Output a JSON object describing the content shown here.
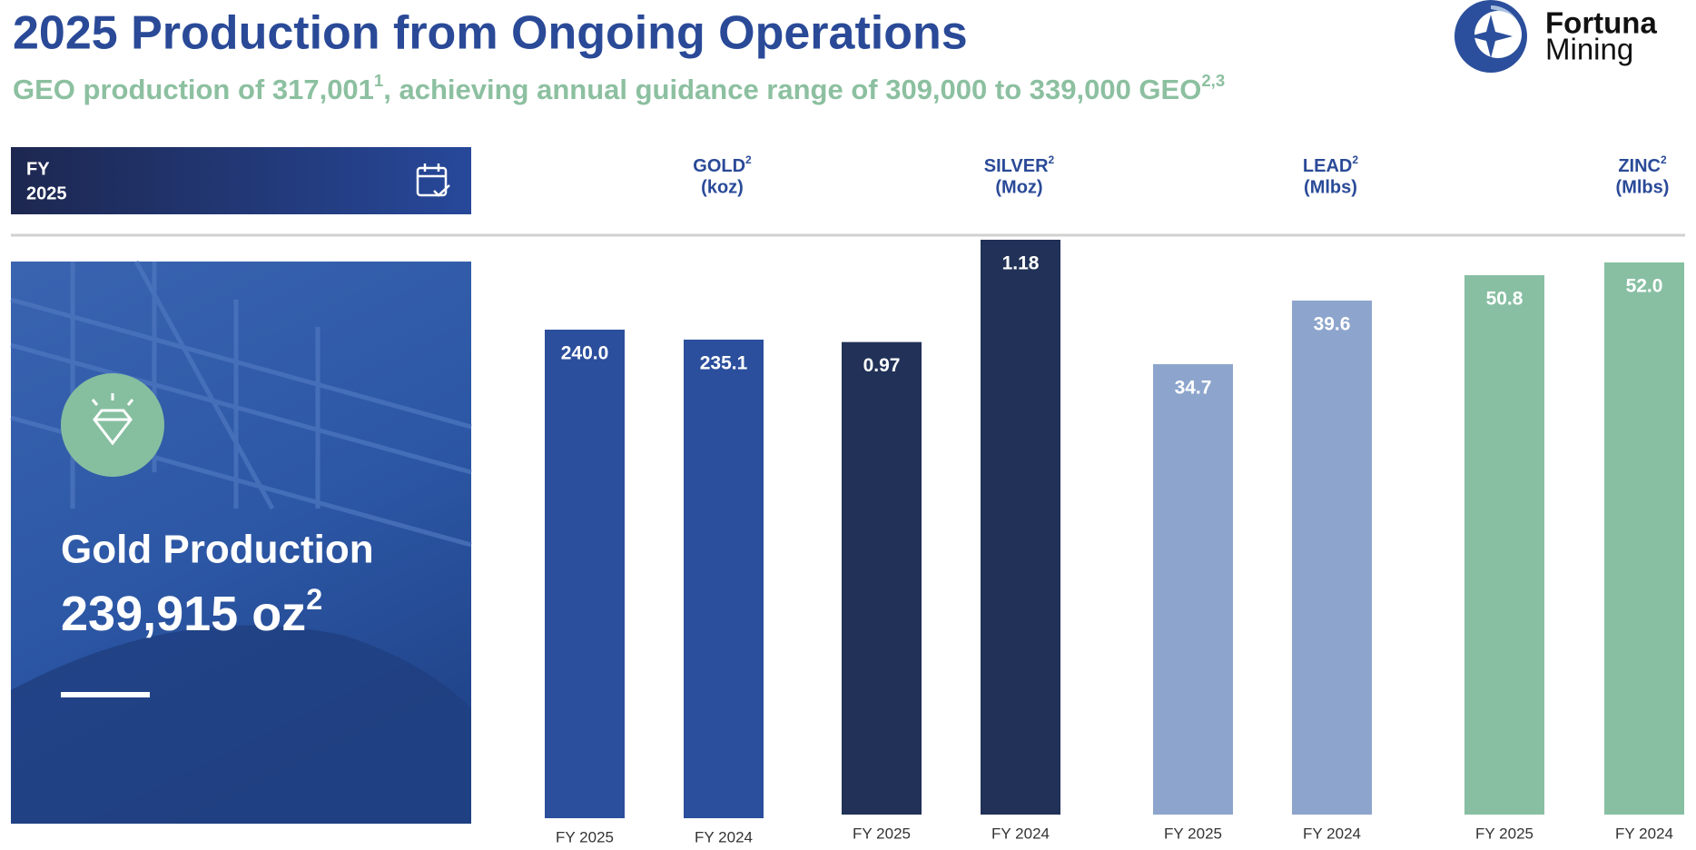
{
  "header": {
    "title": "2025 Production from Ongoing Operations",
    "subtitle_parts": [
      "GEO production of 317,001",
      "1",
      ", achieving annual guidance range of 309,000 to 339,000 GEO",
      "2,3"
    ]
  },
  "logo": {
    "line1": "Fortuna",
    "line2": "Mining"
  },
  "period": {
    "label": "FY",
    "year": "2025"
  },
  "panel": {
    "title": "Gold Production",
    "value": "239,915 oz",
    "note": "2"
  },
  "chart_data": [
    {
      "type": "bar",
      "title": "GOLD",
      "title_note": "2",
      "unit": "(koz)",
      "color": "#2b4f9c",
      "categories": [
        "FY 2025",
        "FY 2024"
      ],
      "values": [
        240.0,
        235.1
      ],
      "value_labels": [
        "240.0",
        "235.1"
      ]
    },
    {
      "type": "bar",
      "title": "SILVER",
      "title_note": "2",
      "unit": "(Moz)",
      "color": "#213157",
      "categories": [
        "FY 2025",
        "FY 2024"
      ],
      "values": [
        0.97,
        1.18
      ]
    },
    {
      "type": "bar",
      "title": "LEAD",
      "title_note": "2",
      "unit": "(Mlbs)",
      "color": "#8da5cc",
      "categories": [
        "FY 2025",
        "FY 2024"
      ],
      "values": [
        34.7,
        39.6
      ]
    },
    {
      "type": "bar",
      "title": "ZINC",
      "title_note": "2",
      "unit": "(Mlbs)",
      "color": "#88bfa3",
      "categories": [
        "FY 2025",
        "FY 2024"
      ],
      "values": [
        50.8,
        52.0
      ],
      "value_labels": [
        "50.8",
        "52.0"
      ]
    }
  ]
}
